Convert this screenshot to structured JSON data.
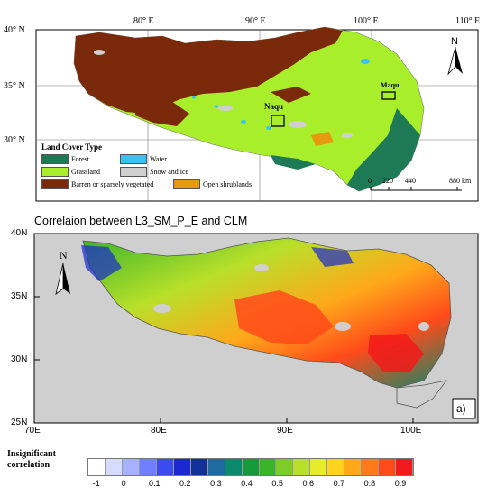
{
  "top_map": {
    "lon_labels": [
      "80° E",
      "90° E",
      "100° E",
      "110° E"
    ],
    "lat_labels": [
      "40° N",
      "35° N",
      "30° N"
    ],
    "north": "N",
    "sites": [
      {
        "name": "Naqu"
      },
      {
        "name": "Maqu"
      }
    ],
    "legend": {
      "title": "Land Cover Type",
      "items": [
        {
          "label": "Forest",
          "color": "#1e7a55"
        },
        {
          "label": "Water",
          "color": "#39c2ef"
        },
        {
          "label": "Grassland",
          "color": "#a8ee2a"
        },
        {
          "label": "Snow and ice",
          "color": "#cfcfcf"
        },
        {
          "label": "Barren or sparsely vegetated",
          "color": "#7a2a0a"
        },
        {
          "label": "Open shrublands",
          "color": "#e7990f"
        }
      ]
    },
    "scale_labels": [
      "0",
      "220",
      "440",
      "880 km"
    ]
  },
  "bottom_map": {
    "title": "Correlaion between L3_SM_P_E and CLM",
    "panel_label": "a)",
    "north": "N",
    "y_ticks": [
      "40N",
      "35N",
      "30N",
      "25N"
    ],
    "x_ticks": [
      "70E",
      "80E",
      "90E",
      "100E"
    ],
    "colorbar": {
      "caption_line1": "Insignificant",
      "caption_line2": "correlation",
      "labels": [
        "-1",
        "0",
        "0.1",
        "0.2",
        "0.3",
        "0.4",
        "0.5",
        "0.6",
        "0.7",
        "0.8",
        "0.9"
      ],
      "colors": [
        "#ffffff",
        "#d6dcff",
        "#a6b2ff",
        "#6f80ff",
        "#3a4cf0",
        "#1a2ad0",
        "#10309a",
        "#1f6aa0",
        "#0a8a6a",
        "#169a3a",
        "#3ab52a",
        "#7ccd2a",
        "#b8e02a",
        "#e6ec2a",
        "#ffd21f",
        "#ffa81a",
        "#ff7a1a",
        "#ff4a1a",
        "#f21a1a"
      ]
    }
  }
}
